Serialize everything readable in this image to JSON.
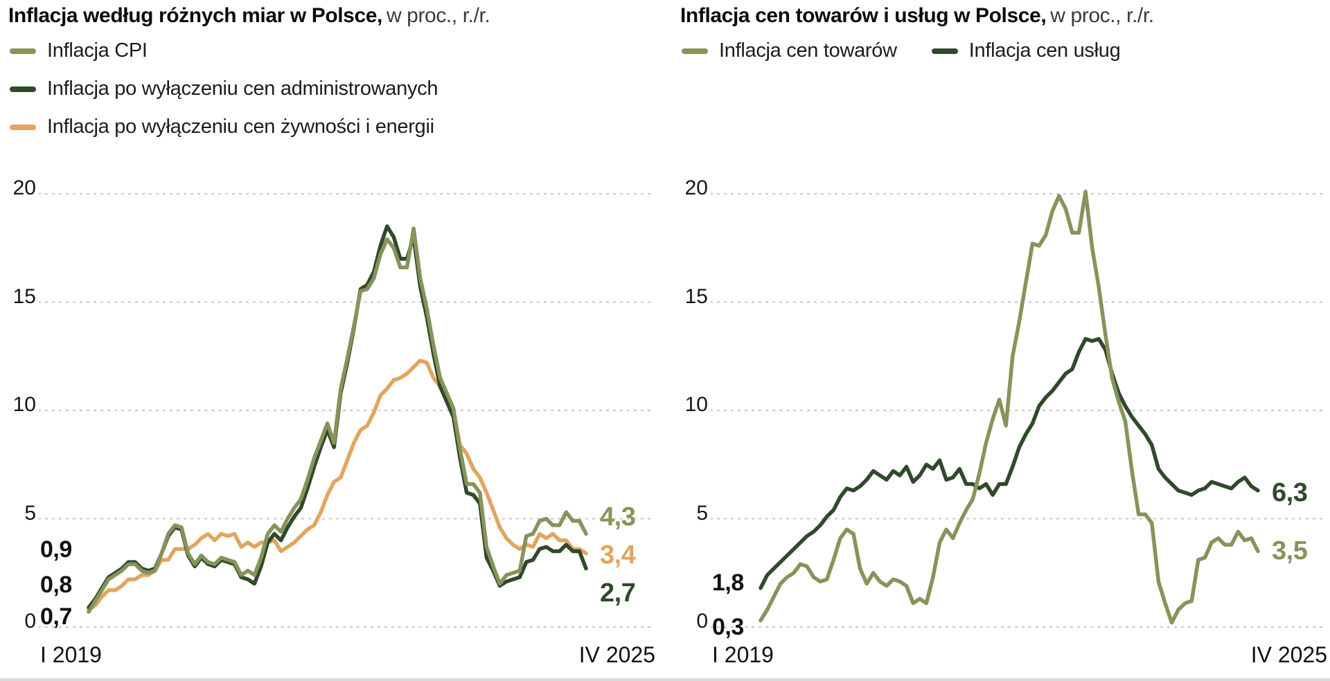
{
  "chart_data": [
    {
      "type": "line",
      "title": "Inflacja według różnych miar w Polsce,",
      "title_suffix": "w proc., r./r.",
      "x_start": "I 2019",
      "x_end": "IV 2025",
      "x_range": [
        "2019-01",
        "2025-04"
      ],
      "x_unit": "month",
      "ylim": [
        0,
        20
      ],
      "yticks": [
        20,
        15,
        10,
        5,
        0
      ],
      "grid": "dashed-horizontal",
      "legend_position": "top-left",
      "series": [
        {
          "name": "Inflacja CPI",
          "color": "#87935A",
          "start_value": 0.7,
          "end_value": 4.3,
          "values": [
            0.7,
            1.2,
            1.7,
            2.2,
            2.4,
            2.6,
            2.9,
            2.9,
            2.6,
            2.5,
            2.6,
            3.4,
            4.3,
            4.7,
            4.6,
            3.4,
            2.9,
            3.3,
            3.0,
            2.9,
            3.2,
            3.1,
            3.0,
            2.4,
            2.6,
            2.4,
            3.2,
            4.3,
            4.7,
            4.4,
            5.0,
            5.5,
            5.9,
            6.8,
            7.8,
            8.6,
            9.4,
            8.5,
            11.0,
            12.4,
            13.9,
            15.5,
            15.6,
            16.1,
            17.2,
            17.9,
            17.5,
            16.6,
            16.6,
            18.4,
            16.1,
            14.7,
            13.0,
            11.5,
            10.8,
            10.1,
            8.2,
            6.6,
            6.6,
            6.2,
            3.7,
            2.8,
            2.0,
            2.4,
            2.5,
            2.6,
            4.2,
            4.3,
            4.9,
            5.0,
            4.7,
            4.7,
            5.3,
            4.9,
            4.9,
            4.3
          ]
        },
        {
          "name": "Inflacja po wyłączeniu cen administrowanych",
          "color": "#2F4A2A",
          "start_value": 0.9,
          "end_value": 2.7,
          "values": [
            0.9,
            1.3,
            1.8,
            2.3,
            2.5,
            2.7,
            3.0,
            3.0,
            2.7,
            2.6,
            2.7,
            3.4,
            4.2,
            4.6,
            4.5,
            3.3,
            2.8,
            3.2,
            2.9,
            2.8,
            3.1,
            3.0,
            2.9,
            2.3,
            2.2,
            2.0,
            2.8,
            3.9,
            4.3,
            4.0,
            4.6,
            5.1,
            5.5,
            6.4,
            7.4,
            8.3,
            9.1,
            8.3,
            10.8,
            12.2,
            13.8,
            15.6,
            15.8,
            16.4,
            17.6,
            18.5,
            18.0,
            17.0,
            17.0,
            18.0,
            15.7,
            14.3,
            12.6,
            11.1,
            10.4,
            9.7,
            7.8,
            6.2,
            6.1,
            5.7,
            3.2,
            2.6,
            1.9,
            2.1,
            2.2,
            2.3,
            3.0,
            3.1,
            3.6,
            3.7,
            3.5,
            3.5,
            3.8,
            3.5,
            3.5,
            2.7
          ]
        },
        {
          "name": "Inflacja po wyłączeniu cen żywności i energii",
          "color": "#E1A55F",
          "start_value": 0.8,
          "end_value": 3.4,
          "values": [
            0.8,
            1.0,
            1.4,
            1.7,
            1.7,
            1.9,
            2.2,
            2.2,
            2.4,
            2.4,
            2.6,
            3.1,
            3.1,
            3.6,
            3.6,
            3.6,
            3.8,
            4.1,
            4.3,
            4.0,
            4.3,
            4.2,
            4.3,
            3.7,
            3.9,
            3.7,
            3.9,
            3.9,
            4.0,
            3.5,
            3.7,
            3.9,
            4.2,
            4.5,
            4.7,
            5.3,
            6.1,
            6.7,
            6.9,
            7.7,
            8.5,
            9.1,
            9.3,
            9.9,
            10.7,
            11.0,
            11.4,
            11.5,
            11.7,
            12.0,
            12.3,
            12.2,
            11.5,
            11.1,
            10.6,
            10.0,
            8.4,
            8.0,
            7.3,
            6.9,
            6.2,
            5.4,
            4.6,
            4.1,
            3.8,
            3.6,
            3.8,
            3.7,
            4.3,
            4.1,
            4.3,
            4.0,
            4.0,
            3.6,
            3.6,
            3.4
          ]
        }
      ],
      "annotations": {
        "start": [
          {
            "text": "0,9",
            "color": "#111111"
          },
          {
            "text": "0,8",
            "color": "#111111"
          },
          {
            "text": "0,7",
            "color": "#111111"
          }
        ],
        "end": [
          {
            "text": "4,3",
            "color": "#87935A"
          },
          {
            "text": "3,4",
            "color": "#E1A55F"
          },
          {
            "text": "2,7",
            "color": "#2F4A2A"
          }
        ]
      }
    },
    {
      "type": "line",
      "title": "Inflacja cen towarów i usług w Polsce,",
      "title_suffix": "w proc., r./r.",
      "x_start": "I 2019",
      "x_end": "IV 2025",
      "x_range": [
        "2019-01",
        "2025-04"
      ],
      "x_unit": "month",
      "ylim": [
        0,
        20
      ],
      "yticks": [
        20,
        15,
        10,
        5,
        0
      ],
      "grid": "dashed-horizontal",
      "legend_position": "top-left",
      "series": [
        {
          "name": "Inflacja cen towarów",
          "color": "#87935A",
          "start_value": 0.3,
          "end_value": 3.5,
          "values": [
            0.3,
            0.8,
            1.4,
            2.0,
            2.3,
            2.5,
            2.9,
            2.8,
            2.3,
            2.1,
            2.2,
            3.1,
            4.1,
            4.5,
            4.3,
            2.7,
            2.0,
            2.5,
            2.1,
            1.9,
            2.2,
            2.1,
            1.9,
            1.1,
            1.3,
            1.1,
            2.3,
            3.9,
            4.5,
            4.1,
            4.8,
            5.4,
            5.9,
            7.1,
            8.5,
            9.6,
            10.5,
            9.3,
            12.5,
            14.1,
            15.9,
            17.7,
            17.6,
            18.1,
            19.2,
            19.9,
            19.3,
            18.2,
            18.2,
            20.1,
            17.5,
            15.7,
            13.5,
            11.5,
            10.4,
            9.5,
            7.2,
            5.2,
            5.2,
            4.8,
            2.1,
            1.1,
            0.2,
            0.8,
            1.1,
            1.2,
            3.1,
            3.2,
            3.9,
            4.1,
            3.8,
            3.8,
            4.4,
            4.0,
            4.1,
            3.5
          ]
        },
        {
          "name": "Inflacja cen usług",
          "color": "#2F4A2A",
          "start_value": 1.8,
          "end_value": 6.3,
          "values": [
            1.8,
            2.4,
            2.7,
            3.0,
            3.3,
            3.6,
            3.9,
            4.2,
            4.4,
            4.7,
            5.1,
            5.4,
            6.0,
            6.4,
            6.3,
            6.5,
            6.8,
            7.2,
            7.0,
            6.8,
            7.2,
            7.0,
            7.4,
            6.7,
            7.0,
            7.5,
            7.3,
            7.7,
            6.8,
            6.9,
            7.3,
            6.6,
            6.6,
            6.4,
            6.6,
            6.1,
            6.6,
            6.6,
            7.4,
            8.3,
            8.9,
            9.4,
            10.2,
            10.6,
            10.9,
            11.3,
            11.7,
            11.9,
            12.7,
            13.3,
            13.2,
            13.3,
            12.8,
            11.7,
            10.8,
            10.2,
            9.7,
            9.3,
            8.9,
            8.4,
            7.3,
            6.9,
            6.6,
            6.3,
            6.2,
            6.1,
            6.3,
            6.4,
            6.7,
            6.6,
            6.5,
            6.4,
            6.7,
            6.9,
            6.5,
            6.3
          ]
        }
      ],
      "annotations": {
        "start": [
          {
            "text": "1,8",
            "color": "#111111"
          },
          {
            "text": "0,3",
            "color": "#111111"
          }
        ],
        "end": [
          {
            "text": "6,3",
            "color": "#2F4A2A"
          },
          {
            "text": "3,5",
            "color": "#87935A"
          }
        ]
      }
    }
  ]
}
